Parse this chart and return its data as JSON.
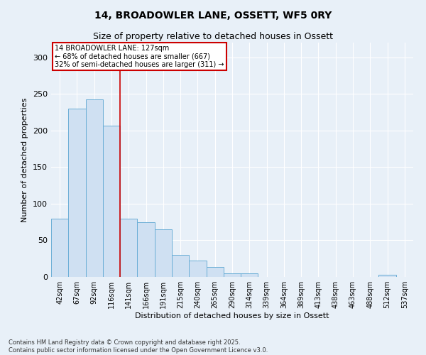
{
  "title_line1": "14, BROADOWLER LANE, OSSETT, WF5 0RY",
  "title_line2": "Size of property relative to detached houses in Ossett",
  "xlabel": "Distribution of detached houses by size in Ossett",
  "ylabel": "Number of detached properties",
  "bar_color": "#cfe0f2",
  "bar_edge_color": "#6baed6",
  "categories": [
    "42sqm",
    "67sqm",
    "92sqm",
    "116sqm",
    "141sqm",
    "166sqm",
    "191sqm",
    "215sqm",
    "240sqm",
    "265sqm",
    "290sqm",
    "314sqm",
    "339sqm",
    "364sqm",
    "389sqm",
    "413sqm",
    "438sqm",
    "463sqm",
    "488sqm",
    "512sqm",
    "537sqm"
  ],
  "values": [
    80,
    230,
    242,
    207,
    80,
    75,
    65,
    30,
    22,
    14,
    5,
    5,
    0,
    0,
    0,
    0,
    0,
    0,
    0,
    3,
    0
  ],
  "ylim": [
    0,
    320
  ],
  "yticks": [
    0,
    50,
    100,
    150,
    200,
    250,
    300
  ],
  "property_line_x": 3.5,
  "annotation_text": "14 BROADOWLER LANE: 127sqm\n← 68% of detached houses are smaller (667)\n32% of semi-detached houses are larger (311) →",
  "annotation_box_color": "#ffffff",
  "annotation_border_color": "#cc0000",
  "vline_color": "#cc0000",
  "background_color": "#e8f0f8",
  "plot_bg_color": "#e8f0f8",
  "grid_color": "#ffffff",
  "footer_line1": "Contains HM Land Registry data © Crown copyright and database right 2025.",
  "footer_line2": "Contains public sector information licensed under the Open Government Licence v3.0.",
  "title_fontsize": 10,
  "subtitle_fontsize": 9,
  "axis_label_fontsize": 8,
  "tick_fontsize": 7,
  "footer_fontsize": 6
}
